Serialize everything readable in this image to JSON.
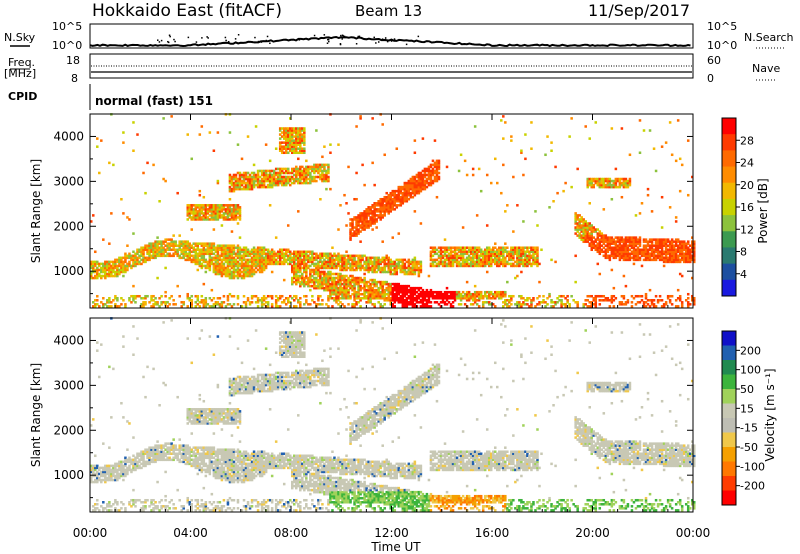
{
  "header": {
    "station": "Hokkaido East (fitACF)",
    "beam": "Beam 13",
    "date": "11/Sep/2017"
  },
  "nsky_panel": {
    "left_label": "N.Sky",
    "right_label": "N.Search",
    "left_ticks": [
      "10^5",
      "10^0"
    ],
    "right_ticks": [
      "10^5",
      "10^0"
    ]
  },
  "freq_panel": {
    "left_label_1": "Freq.",
    "left_label_2": "[MHz]",
    "right_label": "Nave",
    "left_ticks": [
      "18",
      "8"
    ],
    "right_ticks": [
      "60",
      "0"
    ]
  },
  "cpid": {
    "label": "CPID",
    "value": "normal (fast) 151"
  },
  "chart_data": [
    {
      "type": "heatmap",
      "name": "power",
      "ylabel": "Slant Range [km]",
      "yticks": [
        "4000",
        "3000",
        "2000",
        "1000"
      ],
      "ylim": [
        180,
        4500
      ],
      "xlim": [
        "00:00",
        "24:00"
      ],
      "colorbar": {
        "label": "Power [dB]",
        "ticks": [
          "28",
          "24",
          "20",
          "16",
          "12",
          "8",
          "4"
        ],
        "colors": [
          "#ff0000",
          "#ff3a00",
          "#ff6a00",
          "#ff8c00",
          "#f2b800",
          "#c8d200",
          "#8cc23c",
          "#3c9a50",
          "#2a7a70",
          "#1d4fa0",
          "#1a1ae0"
        ]
      }
    },
    {
      "type": "heatmap",
      "name": "velocity",
      "ylabel": "Slant Range [km]",
      "yticks": [
        "4000",
        "3000",
        "2000",
        "1000"
      ],
      "ylim": [
        180,
        4500
      ],
      "xlim": [
        "00:00",
        "24:00"
      ],
      "colorbar": {
        "label": "Velocity [m s⁻¹]",
        "ticks": [
          "200",
          "100",
          "50",
          "15",
          "-15",
          "-50",
          "-100",
          "-200"
        ],
        "colors": [
          "#1010c8",
          "#2060b0",
          "#208a50",
          "#3cb43c",
          "#a0d25a",
          "#c8c8b4",
          "#bebeb4",
          "#f0c84a",
          "#f5a000",
          "#ff7800",
          "#ff3c00",
          "#ff0000"
        ]
      }
    }
  ],
  "xaxis": {
    "ticks": [
      "00:00",
      "04:00",
      "08:00",
      "12:00",
      "16:00",
      "20:00",
      "00:00"
    ],
    "label": "Time UT"
  },
  "colors": {
    "bg": "#ffffff",
    "ground_scatter_grey": "#bfbfbf"
  }
}
